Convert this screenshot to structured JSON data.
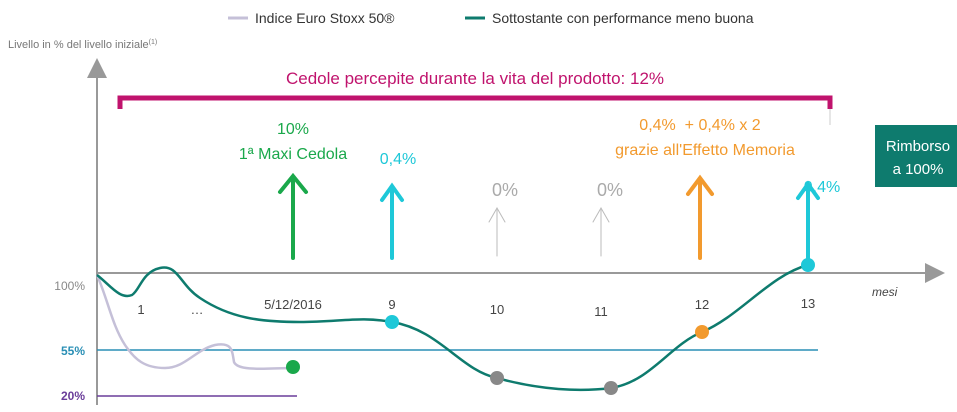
{
  "legend": {
    "items": [
      "Indice Euro Stoxx 50®",
      "Sottostante con performance meno buona"
    ]
  },
  "y_axis": {
    "label": "Livello in % del livello iniziale",
    "footnote": "(1)",
    "levels": [
      "100%",
      "55%",
      "20%"
    ]
  },
  "x_axis": {
    "label": "mesi",
    "ticks": [
      "1",
      "…",
      "5/12/2016",
      "9",
      "10",
      "11",
      "12",
      "13"
    ]
  },
  "bracket_title": "Cedole percepite durante la vita del prodotto: 12%",
  "coupons": [
    {
      "lines": [
        "10%",
        "1ª Maxi Cedola"
      ]
    },
    {
      "lines": [
        "0,4%"
      ]
    },
    {
      "lines": [
        "0%"
      ]
    },
    {
      "lines": [
        "0%"
      ]
    },
    {
      "lines": [
        "0,4%  + 0,4% x 2",
        "grazie all'Effetto Memoria"
      ]
    },
    {
      "lines": [
        "0,4%"
      ]
    }
  ],
  "redemption": {
    "lines": [
      "Rimborso",
      "a 100%"
    ]
  }
}
